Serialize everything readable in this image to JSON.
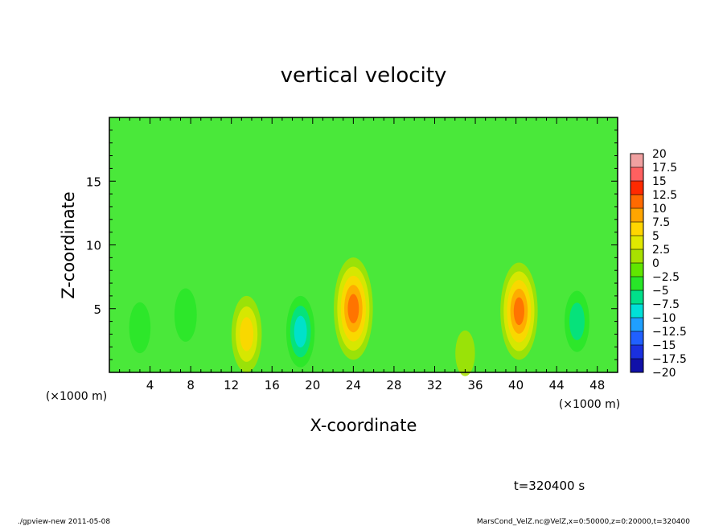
{
  "chart_data": {
    "type": "heatmap",
    "title": "vertical velocity",
    "xlabel": "X-coordinate",
    "ylabel": "Z-coordinate",
    "x_unit_left": "(×1000 m)",
    "x_unit_right": "(×1000 m)",
    "xlim": [
      0,
      50
    ],
    "ylim": [
      0,
      20
    ],
    "x_ticks": [
      "4",
      "8",
      "12",
      "16",
      "20",
      "24",
      "28",
      "32",
      "36",
      "40",
      "44",
      "48"
    ],
    "y_ticks": [
      "5",
      "10",
      "15"
    ],
    "colorbar": {
      "labels": [
        "20",
        "17.5",
        "15",
        "12.5",
        "10",
        "7.5",
        "5",
        "2.5",
        "0",
        "−2.5",
        "−5",
        "−7.5",
        "−10",
        "−12.5",
        "−15",
        "−17.5",
        "−20"
      ],
      "colors": [
        "#f0a0a0",
        "#ff6060",
        "#ff2a00",
        "#ff6a00",
        "#ffa500",
        "#ffd500",
        "#e0e800",
        "#a8e000",
        "#60e600",
        "#28e628",
        "#00e08a",
        "#00e0d8",
        "#1f9fff",
        "#2060ff",
        "#1a30e0",
        "#1010a8",
        "#7a20c0"
      ]
    },
    "features": [
      {
        "x": 3.0,
        "z": 3.5,
        "w": -3.0
      },
      {
        "x": 7.5,
        "z": 4.5,
        "w": -3.5
      },
      {
        "x": 13.5,
        "z": 3.0,
        "w": 8.0
      },
      {
        "x": 18.8,
        "z": 3.2,
        "w": -7.0
      },
      {
        "x": 24.0,
        "z": 5.0,
        "w": 13.0
      },
      {
        "x": 35.0,
        "z": 1.5,
        "w": 2.0
      },
      {
        "x": 40.3,
        "z": 4.8,
        "w": 12.0
      },
      {
        "x": 46.0,
        "z": 4.0,
        "w": -5.0
      }
    ]
  },
  "time_label": "t=320400 s",
  "footer": {
    "left": "./gpview-new   2011-05-08",
    "right": "MarsCond_VelZ.nc@VelZ,x=0:50000,z=0:20000,t=320400"
  }
}
